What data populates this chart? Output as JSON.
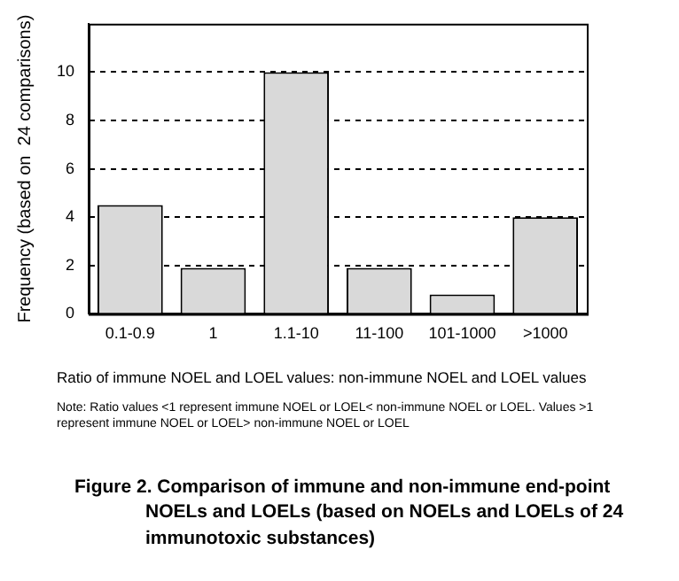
{
  "chart_data": {
    "type": "bar",
    "title": "Figure 2.  Comparison of immune and non-immune end-point NOELs and LOELs (based on NOELs and LOELs of 24 immunotoxic substances)",
    "xlabel": "Ratio of immune NOEL and LOEL values:   non-immune NOEL and LOEL  values",
    "ylabel": "Frequency (based on  24 comparisons)",
    "categories": [
      "0.1-0.9",
      "1",
      "1.1-10",
      "11-100",
      "101-1000",
      ">1000"
    ],
    "values": [
      4.5,
      1.9,
      10,
      1.9,
      0.8,
      4
    ],
    "color": "#d9d9d9",
    "ylim": [
      0,
      12
    ],
    "yticks": [
      0,
      2,
      4,
      6,
      8,
      10
    ],
    "grid": "y",
    "annotations": [
      "Note:  Ratio values <1  represent immune NOEL or LOEL< non-immune NOEL or LOEL.  Values >1  represent immune NOEL or LOEL> non-immune NOEL or LOEL"
    ]
  }
}
